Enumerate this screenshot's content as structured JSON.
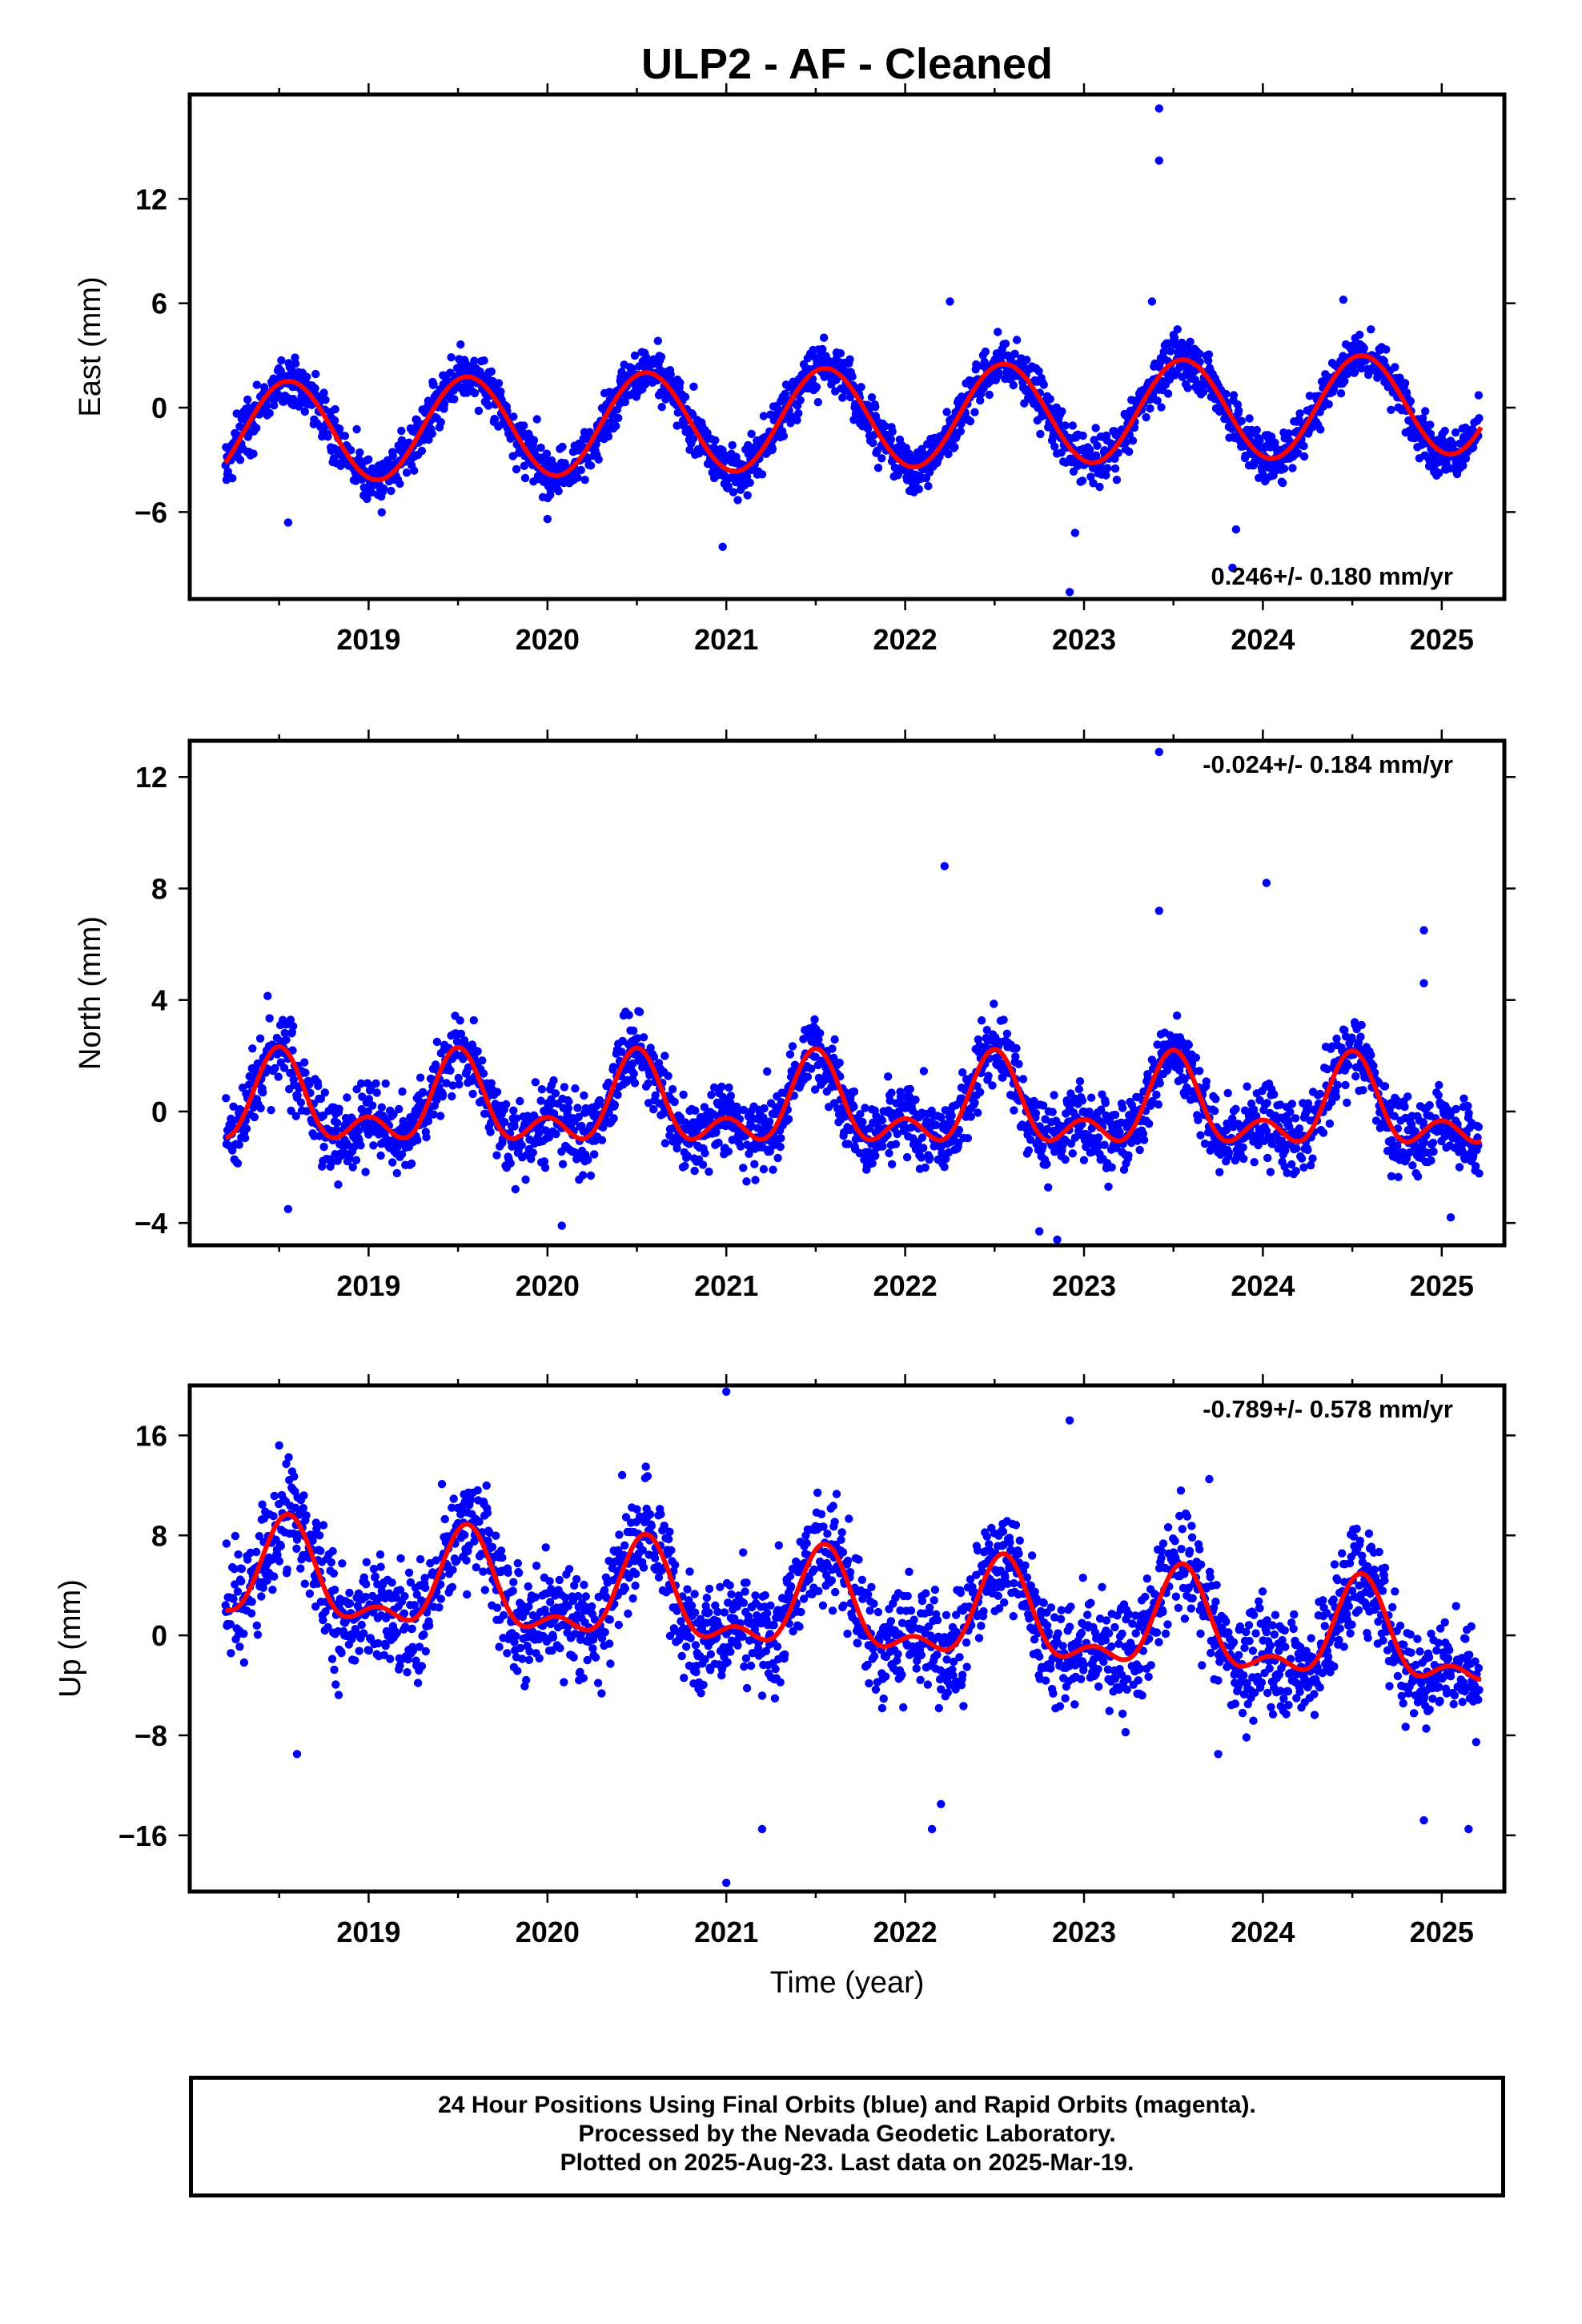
{
  "title": "ULP2  - AF - Cleaned",
  "xlabel": "Time (year)",
  "footer": {
    "line1": "24 Hour Positions Using Final Orbits (blue) and Rapid Orbits (magenta).",
    "line2": "Processed by the Nevada Geodetic Laboratory.",
    "line3": "Plotted on 2025-Aug-23. Last data on 2025-Mar-19."
  },
  "colors": {
    "final_orbits": "#0000ff",
    "fit_line": "#ff0000"
  },
  "chart_data": [
    {
      "type": "scatter",
      "component": "East",
      "ylabel": "East (mm)",
      "rate_label": "0.246+/- 0.180 mm/yr",
      "xlim": [
        2018.0,
        2025.35
      ],
      "ylim": [
        -11,
        18
      ],
      "xticks": [
        "2019",
        "2020",
        "2021",
        "2022",
        "2023",
        "2024",
        "2025"
      ],
      "yticks": [
        "12",
        "6",
        "0",
        "-6"
      ],
      "grid": false,
      "fit": {
        "color": "#ff0000",
        "trend_mm_per_yr": 0.246,
        "offset_mm": -0.6,
        "annual_amp_mm": 2.9,
        "annual_peak_year_frac": 0.55,
        "semiannual_amp_mm": 0
      },
      "outliers": [
        [
          2023.42,
          17.2
        ],
        [
          2023.42,
          14.2
        ],
        [
          2022.25,
          6.1
        ],
        [
          2023.38,
          6.1
        ],
        [
          2024.45,
          6.2
        ],
        [
          2020.98,
          -8.0
        ],
        [
          2022.92,
          -10.6
        ],
        [
          2022.95,
          -7.2
        ],
        [
          2023.83,
          -9.2
        ],
        [
          2023.85,
          -7.0
        ],
        [
          2018.55,
          -6.6
        ],
        [
          2020.0,
          -6.4
        ]
      ]
    },
    {
      "type": "scatter",
      "component": "North",
      "ylabel": "North (mm)",
      "rate_label": "-0.024+/- 0.184 mm/yr",
      "xlim": [
        2018.0,
        2025.35
      ],
      "ylim": [
        -4.8,
        13.3
      ],
      "xticks": [
        "2019",
        "2020",
        "2021",
        "2022",
        "2023",
        "2024",
        "2025"
      ],
      "yticks": [
        "12",
        "8",
        "4",
        "0",
        "-4"
      ],
      "grid": false,
      "fit": {
        "color": "#ff0000",
        "trend_mm_per_yr": -0.024,
        "offset_mm": 0.1,
        "annual_amp_mm": 1.25,
        "annual_peak_year_frac": 0.5,
        "semiannual_amp_mm": 0.9
      },
      "outliers": [
        [
          2023.42,
          12.9
        ],
        [
          2022.22,
          8.8
        ],
        [
          2023.42,
          7.2
        ],
        [
          2024.02,
          8.2
        ],
        [
          2024.9,
          6.5
        ],
        [
          2024.9,
          4.6
        ],
        [
          2022.75,
          -4.3
        ],
        [
          2022.85,
          -4.6
        ],
        [
          2020.08,
          -4.1
        ],
        [
          2025.05,
          -3.8
        ],
        [
          2018.55,
          -3.5
        ]
      ]
    },
    {
      "type": "scatter",
      "component": "Up",
      "ylabel": "Up (mm)",
      "rate_label": "-0.789+/- 0.578 mm/yr",
      "xlim": [
        2018.0,
        2025.35
      ],
      "ylim": [
        -20.5,
        20
      ],
      "xticks": [
        "2019",
        "2020",
        "2021",
        "2022",
        "2023",
        "2024",
        "2025"
      ],
      "yticks": [
        "16",
        "8",
        "0",
        "-8",
        "-16"
      ],
      "grid": false,
      "fit": {
        "color": "#ff0000",
        "trend_mm_per_yr": -0.789,
        "offset_mm": 1.9,
        "annual_amp_mm": 3.5,
        "annual_peak_year_frac": 0.55,
        "semiannual_amp_mm": 1.8
      },
      "outliers": [
        [
          2021.0,
          19.5
        ],
        [
          2022.92,
          17.2
        ],
        [
          2021.0,
          -19.8
        ],
        [
          2018.5,
          15.2
        ],
        [
          2020.55,
          13.5
        ],
        [
          2023.7,
          12.5
        ],
        [
          2021.2,
          -15.5
        ],
        [
          2022.15,
          -15.5
        ],
        [
          2025.15,
          -15.5
        ],
        [
          2024.9,
          -14.8
        ],
        [
          2022.2,
          -13.5
        ],
        [
          2018.6,
          -9.5
        ],
        [
          2023.75,
          -9.5
        ]
      ]
    }
  ]
}
